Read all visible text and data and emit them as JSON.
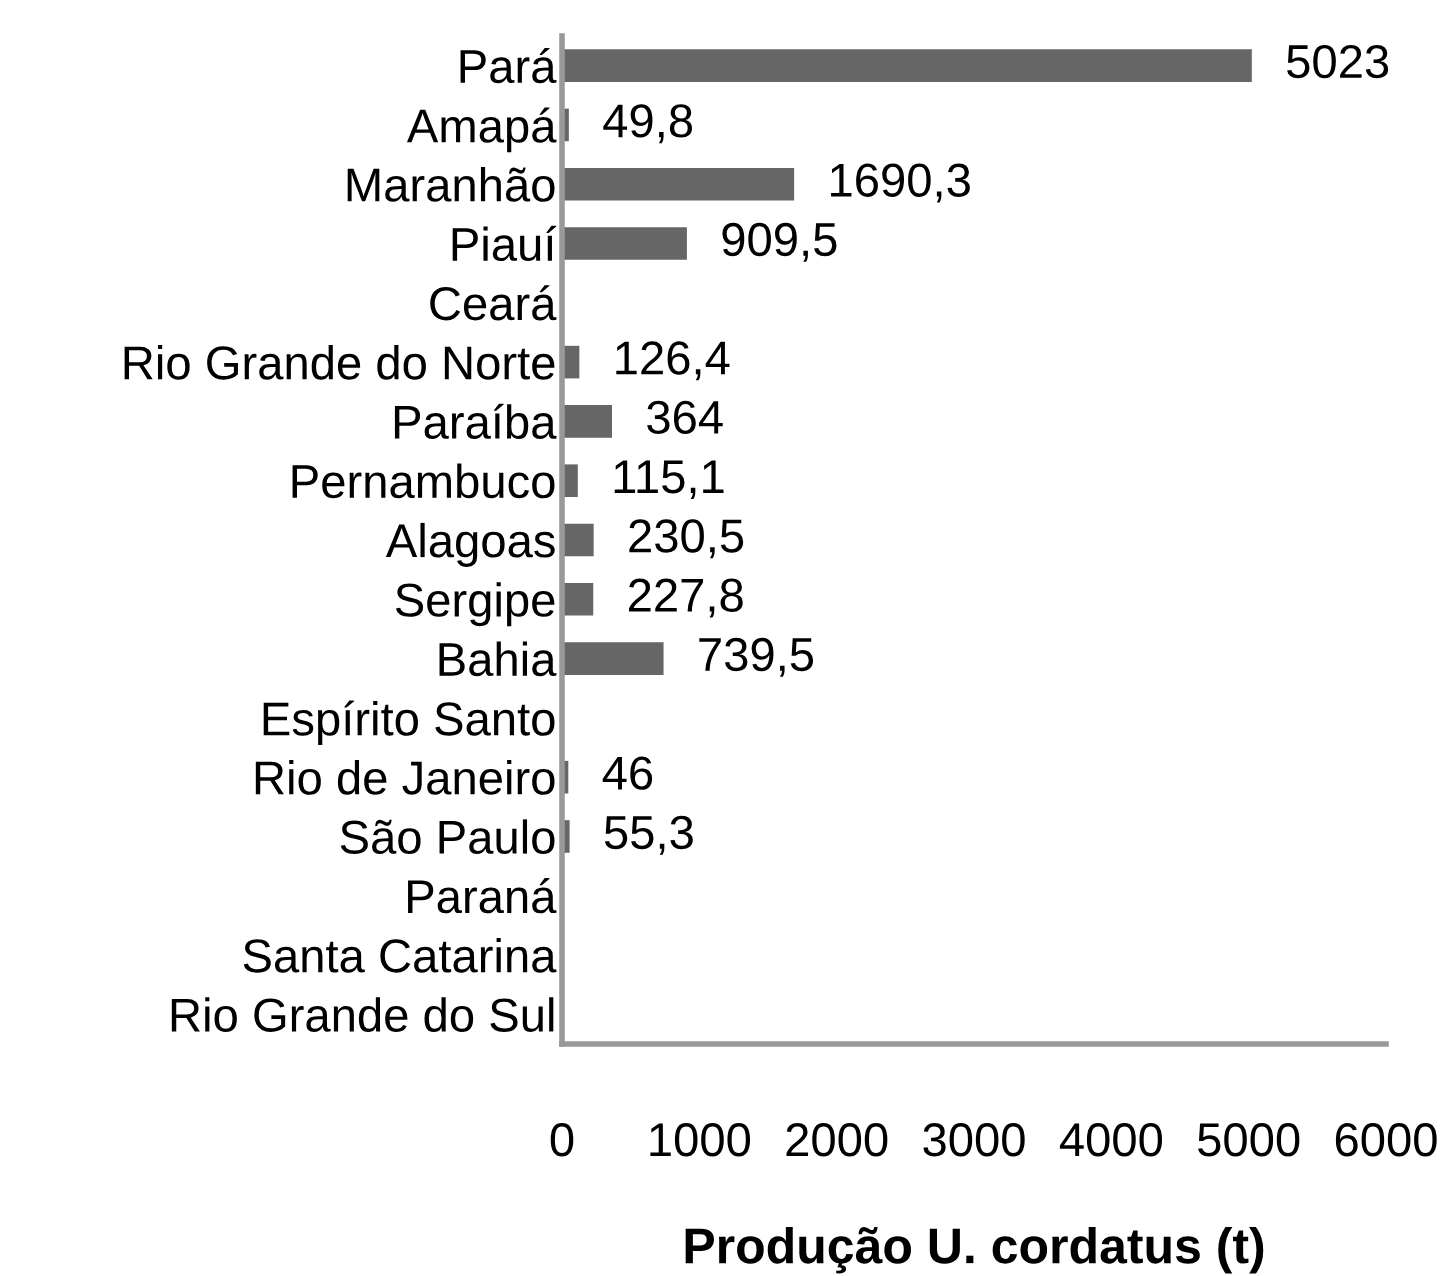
{
  "chart_data": {
    "type": "bar",
    "orientation": "horizontal",
    "xlabel": "Produção U. cordatus (t)",
    "categories": [
      "Pará",
      "Amapá",
      "Maranhão",
      "Piauí",
      "Ceará",
      "Rio Grande do Norte",
      "Paraíba",
      "Pernambuco",
      "Alagoas",
      "Sergipe",
      "Bahia",
      "Espírito Santo",
      "Rio de Janeiro",
      "São Paulo",
      "Paraná",
      "Santa Catarina",
      "Rio Grande do Sul"
    ],
    "values": [
      5023,
      49.8,
      1690.3,
      909.5,
      null,
      126.4,
      364,
      115.1,
      230.5,
      227.8,
      739.5,
      null,
      46,
      55.3,
      null,
      null,
      null
    ],
    "value_labels": [
      "5023",
      "49,8",
      "1690,3",
      "909,5",
      null,
      "126,4",
      "364",
      "115,1",
      "230,5",
      "227,8",
      "739,5",
      null,
      "46",
      "55,3",
      null,
      null,
      null
    ],
    "color": "#666666",
    "xlim": [
      0,
      6000
    ],
    "xticks": [
      0,
      1000,
      2000,
      3000,
      4000,
      5000,
      6000
    ],
    "grid": false,
    "legend": false
  }
}
